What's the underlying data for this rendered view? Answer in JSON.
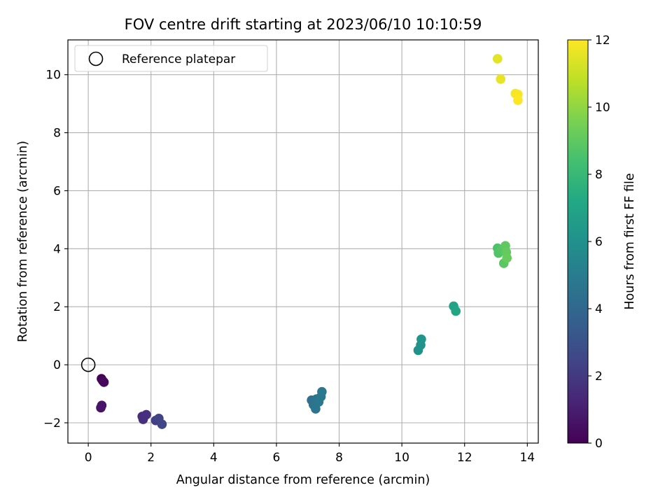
{
  "chart_data": {
    "type": "scatter",
    "title": "FOV centre drift starting at 2023/06/10 10:10:59",
    "xlabel": "Angular distance from reference (arcmin)",
    "ylabel": "Rotation from reference (arcmin)",
    "xlim": [
      -0.65,
      14.35
    ],
    "ylim": [
      -2.7,
      11.2
    ],
    "xticks": [
      0,
      2,
      4,
      6,
      8,
      10,
      12,
      14
    ],
    "yticks": [
      -2,
      0,
      2,
      4,
      6,
      8,
      10
    ],
    "xtick_labels": [
      "0",
      "2",
      "4",
      "6",
      "8",
      "10",
      "12",
      "14"
    ],
    "ytick_labels": [
      "−2",
      "0",
      "2",
      "4",
      "6",
      "8",
      "10"
    ],
    "grid": true,
    "legend": {
      "position": "top-left",
      "entries": [
        "Reference platepar"
      ]
    },
    "reference_point": {
      "x": 0,
      "y": 0
    },
    "colorbar": {
      "label": "Hours from first FF file",
      "colormap": "viridis",
      "range": [
        0,
        12
      ],
      "ticks": [
        0,
        2,
        4,
        6,
        8,
        10,
        12
      ],
      "tick_labels": [
        "0",
        "2",
        "4",
        "6",
        "8",
        "10",
        "12"
      ]
    },
    "points": [
      {
        "x": 0.42,
        "y": -0.48,
        "h": 0.05
      },
      {
        "x": 0.46,
        "y": -0.55,
        "h": 0.15
      },
      {
        "x": 0.5,
        "y": -0.6,
        "h": 0.25
      },
      {
        "x": 0.4,
        "y": -1.48,
        "h": 0.6
      },
      {
        "x": 0.43,
        "y": -1.4,
        "h": 0.7
      },
      {
        "x": 1.72,
        "y": -1.78,
        "h": 1.5
      },
      {
        "x": 1.75,
        "y": -1.88,
        "h": 1.6
      },
      {
        "x": 1.85,
        "y": -1.72,
        "h": 1.7
      },
      {
        "x": 2.15,
        "y": -1.92,
        "h": 2.2
      },
      {
        "x": 2.25,
        "y": -1.85,
        "h": 2.35
      },
      {
        "x": 2.35,
        "y": -2.05,
        "h": 2.5
      },
      {
        "x": 7.12,
        "y": -1.22,
        "h": 4.4
      },
      {
        "x": 7.18,
        "y": -1.38,
        "h": 4.5
      },
      {
        "x": 7.28,
        "y": -1.18,
        "h": 4.6
      },
      {
        "x": 7.25,
        "y": -1.52,
        "h": 4.7
      },
      {
        "x": 7.35,
        "y": -1.28,
        "h": 4.75
      },
      {
        "x": 7.42,
        "y": -1.1,
        "h": 4.8
      },
      {
        "x": 7.45,
        "y": -0.93,
        "h": 4.85
      },
      {
        "x": 10.52,
        "y": 0.5,
        "h": 6.0
      },
      {
        "x": 10.6,
        "y": 0.68,
        "h": 6.1
      },
      {
        "x": 10.62,
        "y": 0.88,
        "h": 6.2
      },
      {
        "x": 11.65,
        "y": 2.02,
        "h": 6.9
      },
      {
        "x": 11.72,
        "y": 1.85,
        "h": 7.0
      },
      {
        "x": 13.05,
        "y": 4.02,
        "h": 8.6
      },
      {
        "x": 13.08,
        "y": 3.85,
        "h": 8.7
      },
      {
        "x": 13.18,
        "y": 3.98,
        "h": 8.8
      },
      {
        "x": 13.25,
        "y": 3.5,
        "h": 8.9
      },
      {
        "x": 13.3,
        "y": 4.1,
        "h": 9.0
      },
      {
        "x": 13.33,
        "y": 3.88,
        "h": 9.1
      },
      {
        "x": 13.35,
        "y": 3.68,
        "h": 9.2
      },
      {
        "x": 13.05,
        "y": 10.55,
        "h": 11.5
      },
      {
        "x": 13.15,
        "y": 9.85,
        "h": 11.6
      },
      {
        "x": 13.62,
        "y": 9.35,
        "h": 11.8
      },
      {
        "x": 13.7,
        "y": 9.32,
        "h": 11.9
      },
      {
        "x": 13.7,
        "y": 9.12,
        "h": 12.0
      }
    ]
  }
}
